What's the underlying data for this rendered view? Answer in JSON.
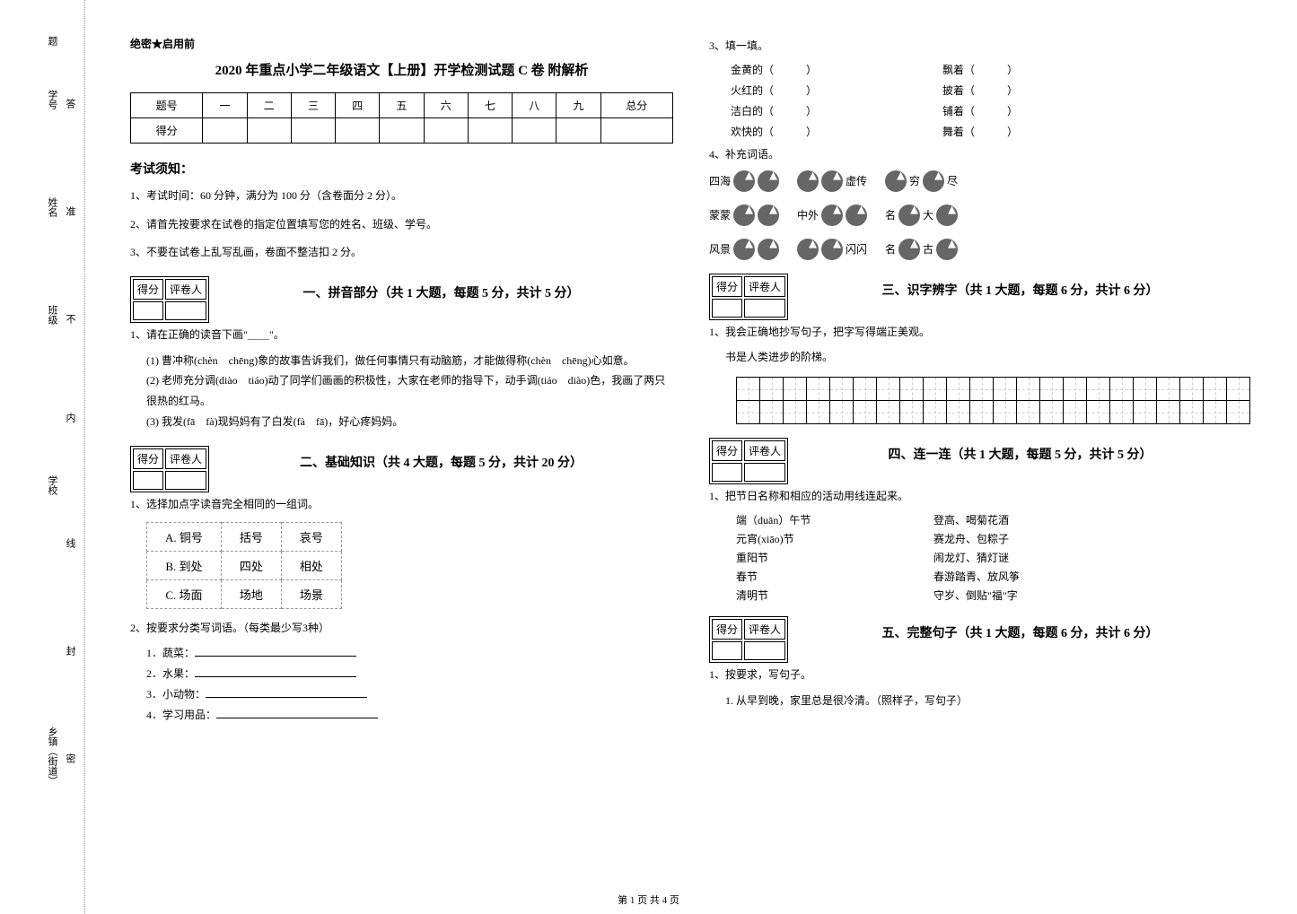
{
  "secret": "绝密★启用前",
  "title": "2020 年重点小学二年级语文【上册】开学检测试题 C 卷 附解析",
  "footer": "第 1 页 共 4 页",
  "margin": {
    "school": "学校",
    "class": "班级",
    "name": "姓名",
    "id": "学号",
    "township": "乡镇（街道）",
    "seal": "封",
    "line": "线",
    "inner": "内",
    "no": "不",
    "allow": "准",
    "ans": "答",
    "ti": "题",
    "mi": "密"
  },
  "scoreTable": {
    "header": [
      "题号",
      "一",
      "二",
      "三",
      "四",
      "五",
      "六",
      "七",
      "八",
      "九",
      "总分"
    ],
    "row": "得分"
  },
  "notice": {
    "title": "考试须知：",
    "items": [
      "1、考试时间：60 分钟，满分为 100 分（含卷面分 2 分）。",
      "2、请首先按要求在试卷的指定位置填写您的姓名、班级、学号。",
      "3、不要在试卷上乱写乱画，卷面不整洁扣 2 分。"
    ]
  },
  "scoreBox": {
    "score": "得分",
    "reviewer": "评卷人"
  },
  "sections": {
    "s1": {
      "title": "一、拼音部分（共 1 大题，每题 5 分，共计 5 分）",
      "q1": "1、请在正确的读音下画\"＿＿\"。",
      "q1_1": "(1) 曹冲称(chèn　chēng)象的故事告诉我们，做任何事情只有动脑筋，才能做得称(chèn　chēng)心如意。",
      "q1_2": "(2) 老师充分调(diào　tiáo)动了同学们画画的积极性，大家在老师的指导下，动手调(tiáo　diào)色，我画了两只很热的红马。",
      "q1_3": "(3) 我发(fā　fà)现妈妈有了白发(fà　fā)，好心疼妈妈。"
    },
    "s2": {
      "title": "二、基础知识（共 4 大题，每题 5 分，共计 20 分）",
      "q1": "1、选择加点字读音完全相同的一组词。",
      "choices": [
        [
          "A. 铜号",
          "括号",
          "哀号"
        ],
        [
          "B. 到处",
          "四处",
          "相处"
        ],
        [
          "C. 场面",
          "场地",
          "场景"
        ]
      ],
      "q2": "2、按要求分类写词语。（每类最少写3种）",
      "q2_items": [
        "1．蔬菜：",
        "2．水果：",
        "3．小动物：",
        "4．学习用品："
      ],
      "q3": "3、填一填。",
      "q3_left": [
        "金黄的（",
        "火红的（",
        "洁白的（",
        "欢快的（"
      ],
      "q3_right": [
        "飘着（",
        "披着（",
        "铺着（",
        "舞着（"
      ],
      "q3_paren": "）",
      "q4": "4、补充词语。",
      "idioms_left": [
        "四海",
        "蒙蒙",
        "风景"
      ],
      "idioms_mid_labels": [
        "虚传",
        "中外",
        "闪闪"
      ],
      "idioms_right_prefix": [
        "",
        "名",
        "名"
      ],
      "idioms_right_suffix": [
        "穷",
        "大",
        "古"
      ],
      "idioms_right_end": [
        "尽",
        "",
        ""
      ]
    },
    "s3": {
      "title": "三、识字辨字（共 1 大题，每题 6 分，共计 6 分）",
      "q1": "1、我会正确地抄写句子，把字写得端正美观。",
      "q1_text": "书是人类进步的阶梯。",
      "grid_cols": 22,
      "grid_rows": 2
    },
    "s4": {
      "title": "四、连一连（共 1 大题，每题 5 分，共计 5 分）",
      "q1": "1、把节日名称和相应的活动用线连起来。",
      "pairs": [
        [
          "端（duān）午节",
          "登高、喝菊花酒"
        ],
        [
          "元宵(xiāo)节",
          "赛龙舟、包粽子"
        ],
        [
          "重阳节",
          "闹龙灯、猜灯谜"
        ],
        [
          "春节",
          "春游踏青、放风筝"
        ],
        [
          "清明节",
          "守岁、倒贴\"福\"字"
        ]
      ]
    },
    "s5": {
      "title": "五、完整句子（共 1 大题，每题 6 分，共计 6 分）",
      "q1": "1、按要求，写句子。",
      "q1_1": "1. 从早到晚，家里总是很冷清。（照样子，写句子）"
    }
  },
  "colors": {
    "text": "#000000",
    "bg": "#ffffff",
    "border": "#000000",
    "dotted": "#999999",
    "circle": "#666666"
  },
  "fonts": {
    "body_pt": 13,
    "title_pt": 15,
    "small_pt": 12
  }
}
